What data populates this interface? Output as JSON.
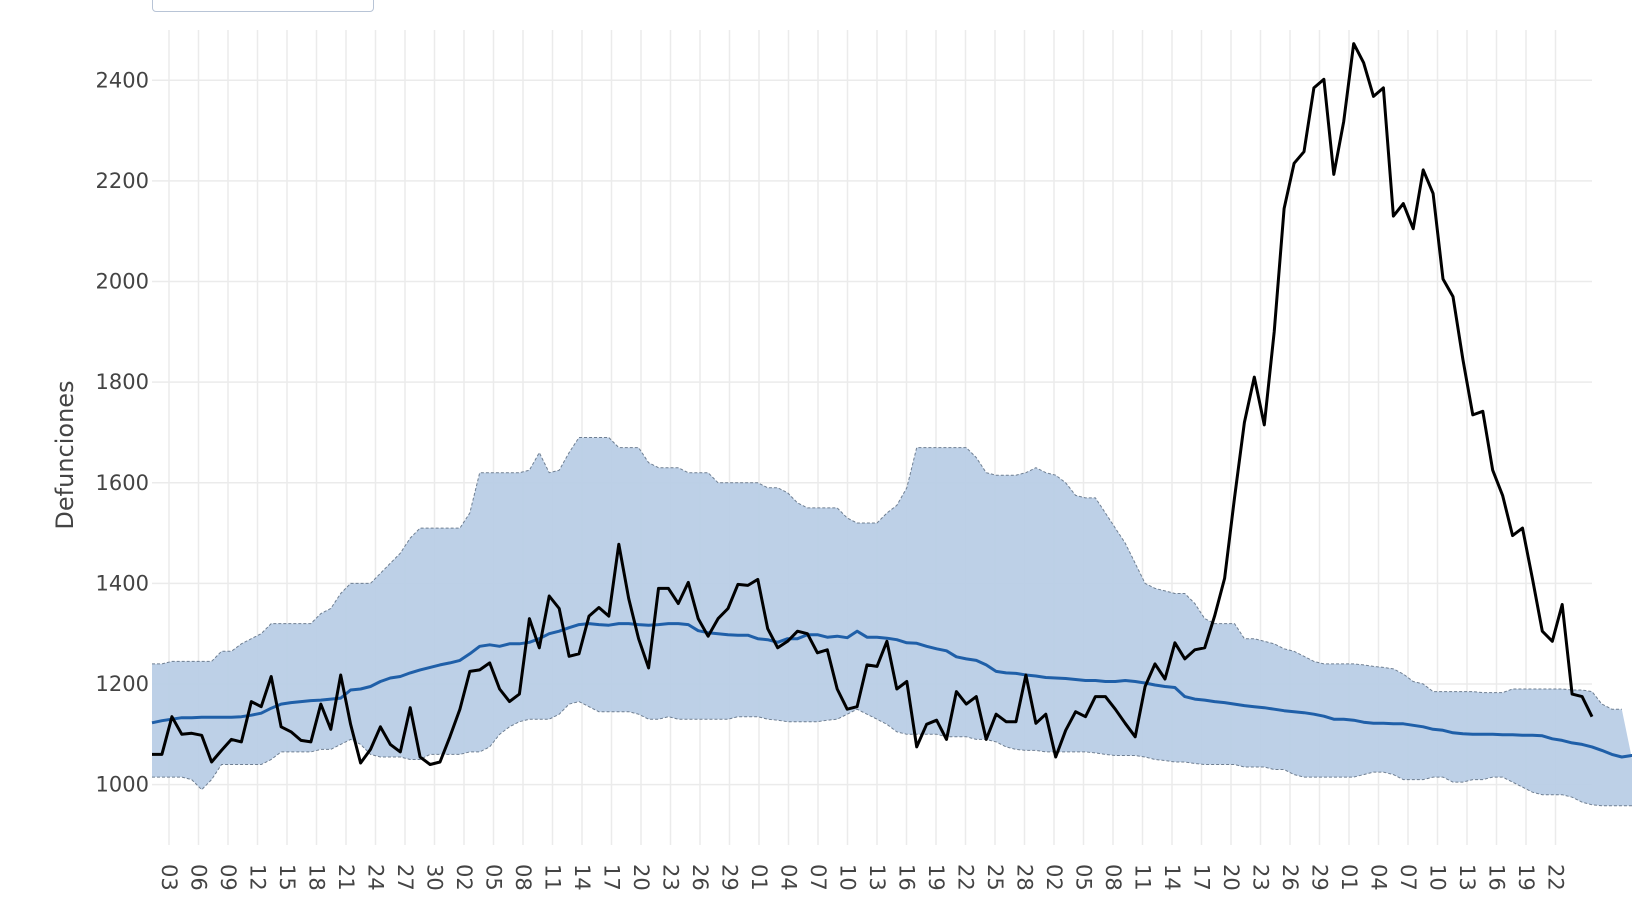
{
  "chart_data": {
    "type": "line",
    "title": "",
    "xlabel": "",
    "ylabel": "Defunciones",
    "ylim": [
      880,
      2500
    ],
    "yticks": [
      1000,
      1200,
      1400,
      1600,
      1800,
      2000,
      2200,
      2400
    ],
    "grid": true,
    "x_tick_labels": [
      "03",
      "06",
      "09",
      "12",
      "15",
      "18",
      "21",
      "24",
      "27",
      "30",
      "02",
      "05",
      "08",
      "11",
      "14",
      "17",
      "20",
      "23",
      "26",
      "29",
      "01",
      "04",
      "07",
      "10",
      "13",
      "16",
      "19",
      "22",
      "25",
      "28",
      "02",
      "05",
      "08",
      "11",
      "14",
      "17",
      "20",
      "23",
      "26",
      "29",
      "01",
      "04",
      "07",
      "10",
      "13",
      "16",
      "19",
      "22"
    ],
    "x_range": [
      -0.5,
      143
    ],
    "series": [
      {
        "role": "observed",
        "color": "#000000",
        "values": [
          1060,
          1060,
          1135,
          1100,
          1102,
          1098,
          1045,
          1068,
          1090,
          1085,
          1165,
          1155,
          1215,
          1115,
          1105,
          1088,
          1085,
          1160,
          1110,
          1218,
          1120,
          1043,
          1070,
          1115,
          1080,
          1065,
          1153,
          1055,
          1040,
          1045,
          1095,
          1150,
          1225,
          1228,
          1242,
          1190,
          1165,
          1180,
          1330,
          1272,
          1375,
          1350,
          1255,
          1260,
          1335,
          1352,
          1335,
          1478,
          1370,
          1290,
          1232,
          1390,
          1390,
          1360,
          1402,
          1330,
          1295,
          1330,
          1350,
          1398,
          1396,
          1408,
          1310,
          1272,
          1285,
          1305,
          1300,
          1262,
          1268,
          1190,
          1150,
          1155,
          1238,
          1235,
          1285,
          1190,
          1205,
          1075,
          1120,
          1128,
          1090,
          1185,
          1160,
          1175,
          1090,
          1140,
          1125,
          1125,
          1218,
          1122,
          1140,
          1055,
          1108,
          1145,
          1135,
          1175,
          1175,
          1150,
          1122,
          1095,
          1195,
          1240,
          1210,
          1282,
          1250,
          1268,
          1272,
          1335,
          1410,
          1570,
          1720,
          1810,
          1715,
          1900,
          2145,
          2235,
          2258,
          2385,
          2402,
          2213,
          2318,
          2473,
          2435,
          2368,
          2385,
          2130,
          2155,
          2105,
          2222,
          2175,
          2005,
          1970,
          1845,
          1735,
          1742,
          1625,
          1575,
          1495,
          1510,
          1410,
          1305,
          1285,
          1358,
          1180,
          1175,
          1135
        ]
      },
      {
        "role": "expected",
        "color": "#1f5fa8",
        "values": [
          1123,
          1127,
          1130,
          1133,
          1133,
          1134,
          1134,
          1134,
          1134,
          1135,
          1138,
          1142,
          1152,
          1160,
          1163,
          1165,
          1167,
          1168,
          1170,
          1172,
          1188,
          1190,
          1195,
          1205,
          1212,
          1215,
          1222,
          1228,
          1233,
          1238,
          1242,
          1247,
          1260,
          1275,
          1278,
          1275,
          1280,
          1280,
          1283,
          1290,
          1300,
          1305,
          1312,
          1318,
          1320,
          1318,
          1317,
          1320,
          1320,
          1318,
          1317,
          1318,
          1320,
          1320,
          1318,
          1306,
          1302,
          1300,
          1298,
          1297,
          1297,
          1290,
          1288,
          1283,
          1290,
          1290,
          1298,
          1298,
          1293,
          1295,
          1292,
          1305,
          1293,
          1293,
          1291,
          1288,
          1282,
          1281,
          1275,
          1270,
          1266,
          1254,
          1250,
          1247,
          1238,
          1225,
          1222,
          1221,
          1218,
          1216,
          1213,
          1212,
          1211,
          1209,
          1207,
          1207,
          1205,
          1205,
          1207,
          1205,
          1202,
          1198,
          1195,
          1193,
          1175,
          1170,
          1168,
          1165,
          1163,
          1160,
          1157,
          1155,
          1153,
          1150,
          1147,
          1145,
          1143,
          1140,
          1136,
          1130,
          1130,
          1128,
          1124,
          1122,
          1122,
          1121,
          1121,
          1118,
          1115,
          1110,
          1108,
          1103,
          1101,
          1100,
          1100,
          1100,
          1099,
          1099,
          1098,
          1098,
          1097,
          1091,
          1088,
          1083,
          1080,
          1075,
          1068,
          1060,
          1055,
          1058,
          1058,
          1054,
          1050
        ]
      },
      {
        "role": "interval-upper",
        "color": "#b9cde6",
        "values": [
          1240,
          1240,
          1245,
          1245,
          1245,
          1245,
          1245,
          1265,
          1265,
          1280,
          1290,
          1300,
          1320,
          1320,
          1320,
          1320,
          1320,
          1340,
          1350,
          1380,
          1400,
          1400,
          1400,
          1420,
          1440,
          1460,
          1490,
          1510,
          1510,
          1510,
          1510,
          1510,
          1540,
          1620,
          1620,
          1620,
          1620,
          1620,
          1625,
          1660,
          1620,
          1625,
          1660,
          1690,
          1690,
          1690,
          1690,
          1670,
          1670,
          1670,
          1640,
          1630,
          1630,
          1630,
          1620,
          1620,
          1620,
          1600,
          1600,
          1600,
          1600,
          1600,
          1590,
          1590,
          1580,
          1560,
          1550,
          1550,
          1550,
          1550,
          1530,
          1520,
          1520,
          1520,
          1540,
          1555,
          1590,
          1670,
          1670,
          1670,
          1670,
          1670,
          1670,
          1650,
          1620,
          1615,
          1615,
          1615,
          1620,
          1630,
          1620,
          1615,
          1600,
          1575,
          1570,
          1570,
          1540,
          1510,
          1480,
          1440,
          1400,
          1390,
          1385,
          1380,
          1380,
          1360,
          1330,
          1320,
          1320,
          1320,
          1290,
          1290,
          1285,
          1280,
          1270,
          1265,
          1255,
          1245,
          1240,
          1240,
          1240,
          1240,
          1238,
          1235,
          1233,
          1230,
          1220,
          1205,
          1200,
          1185,
          1185,
          1185,
          1185,
          1185,
          1183,
          1183,
          1183,
          1190,
          1190,
          1190,
          1190,
          1190,
          1190,
          1188,
          1188,
          1185,
          1160,
          1150,
          1150
        ]
      },
      {
        "role": "interval-lower",
        "color": "#b9cde6",
        "values": [
          1015,
          1015,
          1015,
          1015,
          1010,
          990,
          1010,
          1040,
          1040,
          1040,
          1040,
          1040,
          1050,
          1065,
          1065,
          1065,
          1065,
          1070,
          1070,
          1080,
          1090,
          1080,
          1060,
          1055,
          1055,
          1055,
          1050,
          1050,
          1060,
          1060,
          1060,
          1060,
          1065,
          1065,
          1075,
          1100,
          1115,
          1125,
          1130,
          1130,
          1130,
          1140,
          1160,
          1165,
          1155,
          1145,
          1145,
          1145,
          1145,
          1140,
          1130,
          1130,
          1135,
          1130,
          1130,
          1130,
          1130,
          1130,
          1130,
          1135,
          1135,
          1135,
          1130,
          1128,
          1125,
          1125,
          1125,
          1125,
          1128,
          1130,
          1140,
          1150,
          1140,
          1130,
          1120,
          1105,
          1100,
          1100,
          1100,
          1100,
          1095,
          1095,
          1095,
          1090,
          1090,
          1085,
          1075,
          1070,
          1068,
          1068,
          1065,
          1065,
          1065,
          1065,
          1065,
          1063,
          1060,
          1058,
          1058,
          1058,
          1055,
          1050,
          1048,
          1045,
          1045,
          1042,
          1040,
          1040,
          1040,
          1040,
          1035,
          1035,
          1035,
          1030,
          1030,
          1020,
          1015,
          1015,
          1015,
          1015,
          1015,
          1015,
          1020,
          1025,
          1025,
          1020,
          1010,
          1010,
          1010,
          1015,
          1015,
          1005,
          1005,
          1010,
          1010,
          1015,
          1015,
          1005,
          995,
          985,
          980,
          980,
          980,
          975,
          965,
          960,
          958,
          958,
          958,
          958,
          958
        ]
      }
    ]
  }
}
